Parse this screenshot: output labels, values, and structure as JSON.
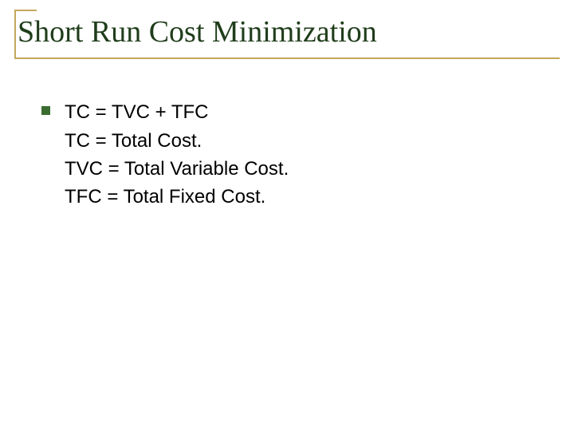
{
  "slide": {
    "title": "Short Run Cost Minimization",
    "bullet_line": "TC = TVC + TFC",
    "lines": [
      "TC = Total Cost.",
      "TVC = Total Variable Cost.",
      "TFC = Total Fixed Cost."
    ],
    "colors": {
      "title_color": "#1f3d1a",
      "rule_color": "#c2a85a",
      "bullet_color": "#3a6b2f",
      "text_color": "#000000",
      "background": "#ffffff"
    },
    "typography": {
      "title_fontsize": 38,
      "body_fontsize": 24,
      "title_family": "Times New Roman",
      "body_family": "Arial"
    }
  }
}
